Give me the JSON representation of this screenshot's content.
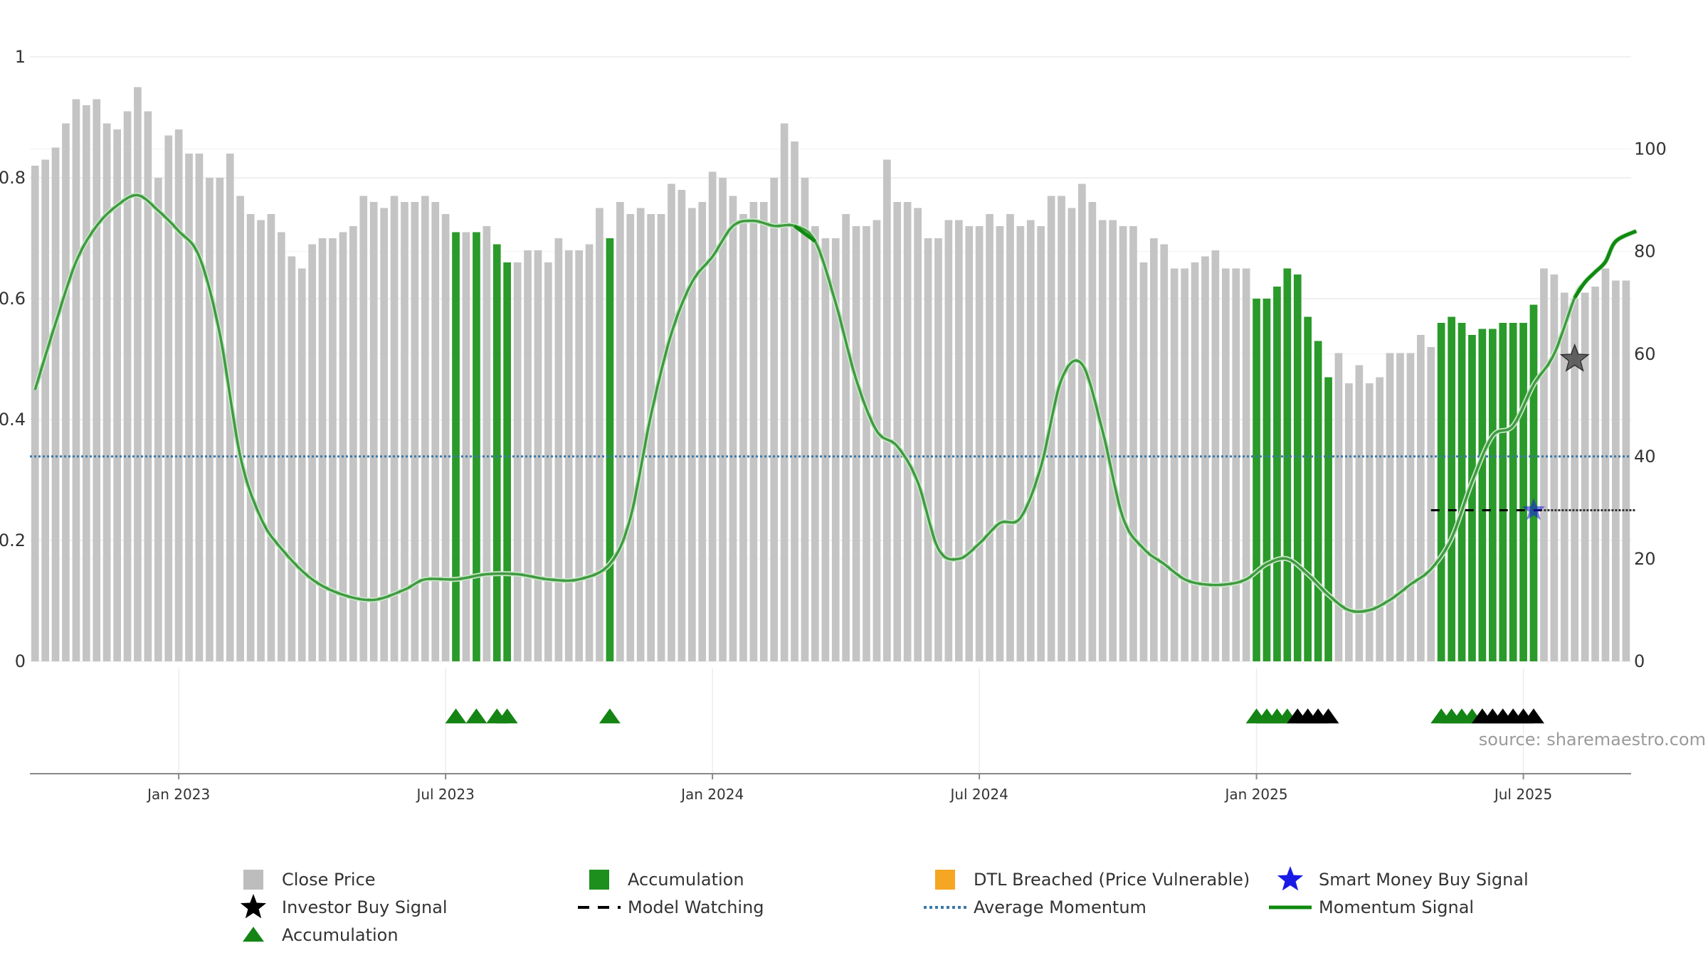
{
  "chart_data": {
    "type": "bar",
    "title": "",
    "source": "source: sharemaestro.com",
    "left_axis": {
      "min": 0,
      "max": 1,
      "ticks": [
        "0",
        "0.2",
        "0.4",
        "0.6",
        "0.8",
        "1"
      ],
      "tick_values": [
        0,
        0.2,
        0.4,
        0.6,
        0.8,
        1
      ]
    },
    "right_axis": {
      "min": 0,
      "max": 118,
      "ticks": [
        "0",
        "20",
        "40",
        "60",
        "80",
        "100"
      ],
      "tick_values": [
        0,
        20,
        40,
        60,
        80,
        100
      ]
    },
    "x_axis": {
      "labels": [
        "Jan 2023",
        "Jul 2023",
        "Jan 2024",
        "Jul 2024",
        "Jan 2025",
        "Jul 2025"
      ],
      "label_index": [
        14,
        40,
        66,
        92,
        119,
        145
      ]
    },
    "close_price": [
      0.82,
      0.83,
      0.85,
      0.89,
      0.93,
      0.92,
      0.93,
      0.89,
      0.88,
      0.91,
      0.95,
      0.91,
      0.8,
      0.87,
      0.88,
      0.84,
      0.84,
      0.8,
      0.8,
      0.84,
      0.77,
      0.74,
      0.73,
      0.74,
      0.71,
      0.67,
      0.65,
      0.69,
      0.7,
      0.7,
      0.71,
      0.72,
      0.77,
      0.76,
      0.75,
      0.77,
      0.76,
      0.76,
      0.77,
      0.76,
      0.74,
      0.71,
      0.71,
      0.71,
      0.72,
      0.69,
      0.66,
      0.66,
      0.68,
      0.68,
      0.66,
      0.7,
      0.68,
      0.68,
      0.69,
      0.75,
      0.7,
      0.76,
      0.74,
      0.75,
      0.74,
      0.74,
      0.79,
      0.78,
      0.75,
      0.76,
      0.81,
      0.8,
      0.77,
      0.74,
      0.76,
      0.76,
      0.8,
      0.89,
      0.86,
      0.8,
      0.72,
      0.7,
      0.7,
      0.74,
      0.72,
      0.72,
      0.73,
      0.83,
      0.76,
      0.76,
      0.75,
      0.7,
      0.7,
      0.73,
      0.73,
      0.72,
      0.72,
      0.74,
      0.72,
      0.74,
      0.72,
      0.73,
      0.72,
      0.77,
      0.77,
      0.75,
      0.79,
      0.76,
      0.73,
      0.73,
      0.72,
      0.72,
      0.66,
      0.7,
      0.69,
      0.65,
      0.65,
      0.66,
      0.67,
      0.68,
      0.65,
      0.65,
      0.65,
      0.6,
      0.6,
      0.62,
      0.65,
      0.64,
      0.57,
      0.53,
      0.47,
      0.51,
      0.46,
      0.49,
      0.46,
      0.47,
      0.51,
      0.51,
      0.51,
      0.54,
      0.52,
      0.56,
      0.57,
      0.56,
      0.54,
      0.55,
      0.55,
      0.56,
      0.56,
      0.56,
      0.59,
      0.65,
      0.64,
      0.61,
      0.6,
      0.61,
      0.62,
      0.65,
      0.63,
      0.63
    ],
    "accumulation_bar_index": [
      41,
      43,
      45,
      46,
      56,
      119,
      120,
      121,
      122,
      123,
      124,
      125,
      126,
      137,
      138,
      139,
      140,
      141,
      142,
      143,
      144,
      145,
      146
    ],
    "accumulation_triangle_index": [
      41,
      43,
      45,
      46,
      56,
      119,
      120,
      121,
      122,
      137,
      138,
      139,
      140
    ],
    "model_watching_triangle_index": [
      123,
      124,
      125,
      126,
      141,
      142,
      143,
      144,
      145,
      146
    ],
    "momentum_series": {
      "x": [
        0,
        2,
        4,
        6,
        8,
        10,
        12,
        14,
        16,
        18,
        20,
        22,
        24,
        27,
        30,
        33,
        36,
        38,
        41,
        44,
        47,
        50,
        53,
        56,
        58,
        60,
        62,
        64,
        66,
        68,
        70,
        72,
        74,
        76,
        78,
        80,
        82,
        84,
        86,
        88,
        90,
        92,
        94,
        96,
        98,
        100,
        102,
        104,
        106,
        108,
        110,
        112,
        114,
        116,
        118,
        120,
        122,
        124,
        126,
        128,
        130,
        132,
        134,
        136,
        138,
        140,
        142,
        144,
        146,
        148,
        150,
        151,
        152,
        153,
        154,
        156
      ],
      "y": [
        53,
        66,
        78,
        85,
        89,
        91,
        88,
        84,
        79,
        64,
        40,
        28,
        22,
        16,
        13,
        12,
        14,
        16,
        16,
        17,
        17,
        16,
        16,
        19,
        28,
        48,
        64,
        74,
        79,
        85,
        86,
        85,
        85,
        82,
        70,
        55,
        45,
        42,
        35,
        22,
        20,
        23,
        27,
        28,
        38,
        55,
        58,
        45,
        28,
        22,
        19,
        16,
        15,
        15,
        16,
        19,
        20,
        17,
        13,
        10,
        10,
        12,
        15,
        18,
        24,
        35,
        44,
        46,
        54,
        60,
        71,
        74,
        76,
        78,
        82,
        84
      ]
    },
    "momentum_bold_ranges": [
      [
        74,
        76
      ],
      [
        150,
        156
      ]
    ],
    "average_momentum": 40,
    "model_watching_line": {
      "x_start": 136,
      "x_end": 156,
      "value": 29.5,
      "dense_from": 147
    },
    "investor_buy_signal": {
      "x": 150,
      "value": 59
    },
    "smart_money_buy_signal": {
      "x": 146,
      "value": 29.5
    },
    "colors": {
      "close_price": "#c4c4c4",
      "accumulation_bar": "#2a9a2a",
      "accumulation_triangle": "#148414",
      "model_watching": "#000000",
      "momentum": "#3f9a3f",
      "momentum_bold": "#0f8a0f",
      "average_momentum": "#3a78a8",
      "smart_money": "#1a1ae6",
      "investor_star": "#555555",
      "dtl": "#f5a623"
    },
    "legend": [
      {
        "label": "Close Price",
        "symbol": "square",
        "color": "#bdbdbd"
      },
      {
        "label": "Accumulation",
        "symbol": "square",
        "color": "#1d8f1d"
      },
      {
        "label": "DTL Breached (Price Vulnerable)",
        "symbol": "square",
        "color": "#f5a623"
      },
      {
        "label": "Smart Money Buy Signal",
        "symbol": "star",
        "color": "#1a1ae6"
      },
      {
        "label": "Investor Buy Signal",
        "symbol": "star",
        "color": "#000000"
      },
      {
        "label": "Model Watching",
        "symbol": "dash",
        "color": "#000000"
      },
      {
        "label": "Average Momentum",
        "symbol": "dot",
        "color": "#3a78a8"
      },
      {
        "label": "Momentum Signal",
        "symbol": "line",
        "color": "#0f8a0f"
      },
      {
        "label": "Accumulation",
        "symbol": "triangle",
        "color": "#148414"
      }
    ]
  }
}
